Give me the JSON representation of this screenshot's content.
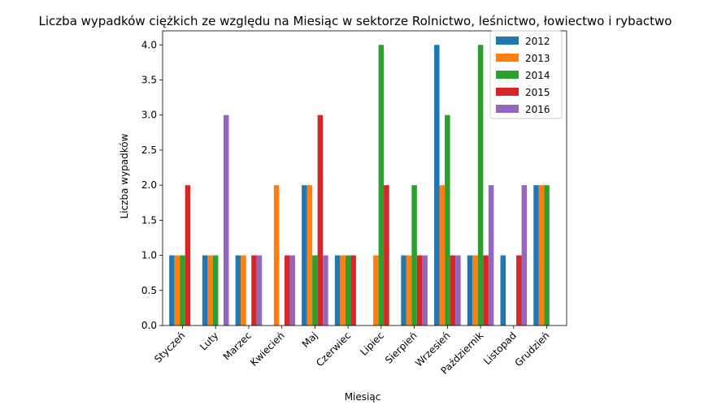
{
  "chart_data": {
    "type": "bar",
    "title": "Liczba wypadków ciężkich ze względu na Miesiąc w sektorze Rolnictwo, leśnictwo, łowiectwo i rybactwo",
    "xlabel": "Miesiąc",
    "ylabel": "Liczba wypadków",
    "ylim": [
      0,
      4.2
    ],
    "yticks": [
      "0.0",
      "0.5",
      "1.0",
      "1.5",
      "2.0",
      "2.5",
      "3.0",
      "3.5",
      "4.0"
    ],
    "grid": false,
    "legend_position": "top-right",
    "categories": [
      "Styczeń",
      "Luty",
      "Marzec",
      "Kwiecień",
      "Maj",
      "Czerwiec",
      "Lipiec",
      "Sierpień",
      "Wrzesień",
      "Październik",
      "Listopad",
      "Grudzień"
    ],
    "series": [
      {
        "name": "2012",
        "color": "#1f77b4",
        "values": [
          1,
          1,
          1,
          0,
          2,
          1,
          0,
          1,
          4,
          1,
          1,
          2
        ]
      },
      {
        "name": "2013",
        "color": "#ff7f0e",
        "values": [
          1,
          1,
          1,
          2,
          2,
          1,
          1,
          1,
          2,
          1,
          0,
          2
        ]
      },
      {
        "name": "2014",
        "color": "#2ca02c",
        "values": [
          1,
          1,
          0,
          0,
          1,
          1,
          4,
          2,
          3,
          4,
          0,
          2
        ]
      },
      {
        "name": "2015",
        "color": "#d62728",
        "values": [
          2,
          0,
          1,
          1,
          3,
          1,
          2,
          1,
          1,
          1,
          1,
          0
        ]
      },
      {
        "name": "2016",
        "color": "#9467bd",
        "values": [
          0,
          3,
          1,
          1,
          1,
          0,
          0,
          1,
          1,
          2,
          2,
          0
        ]
      }
    ]
  }
}
